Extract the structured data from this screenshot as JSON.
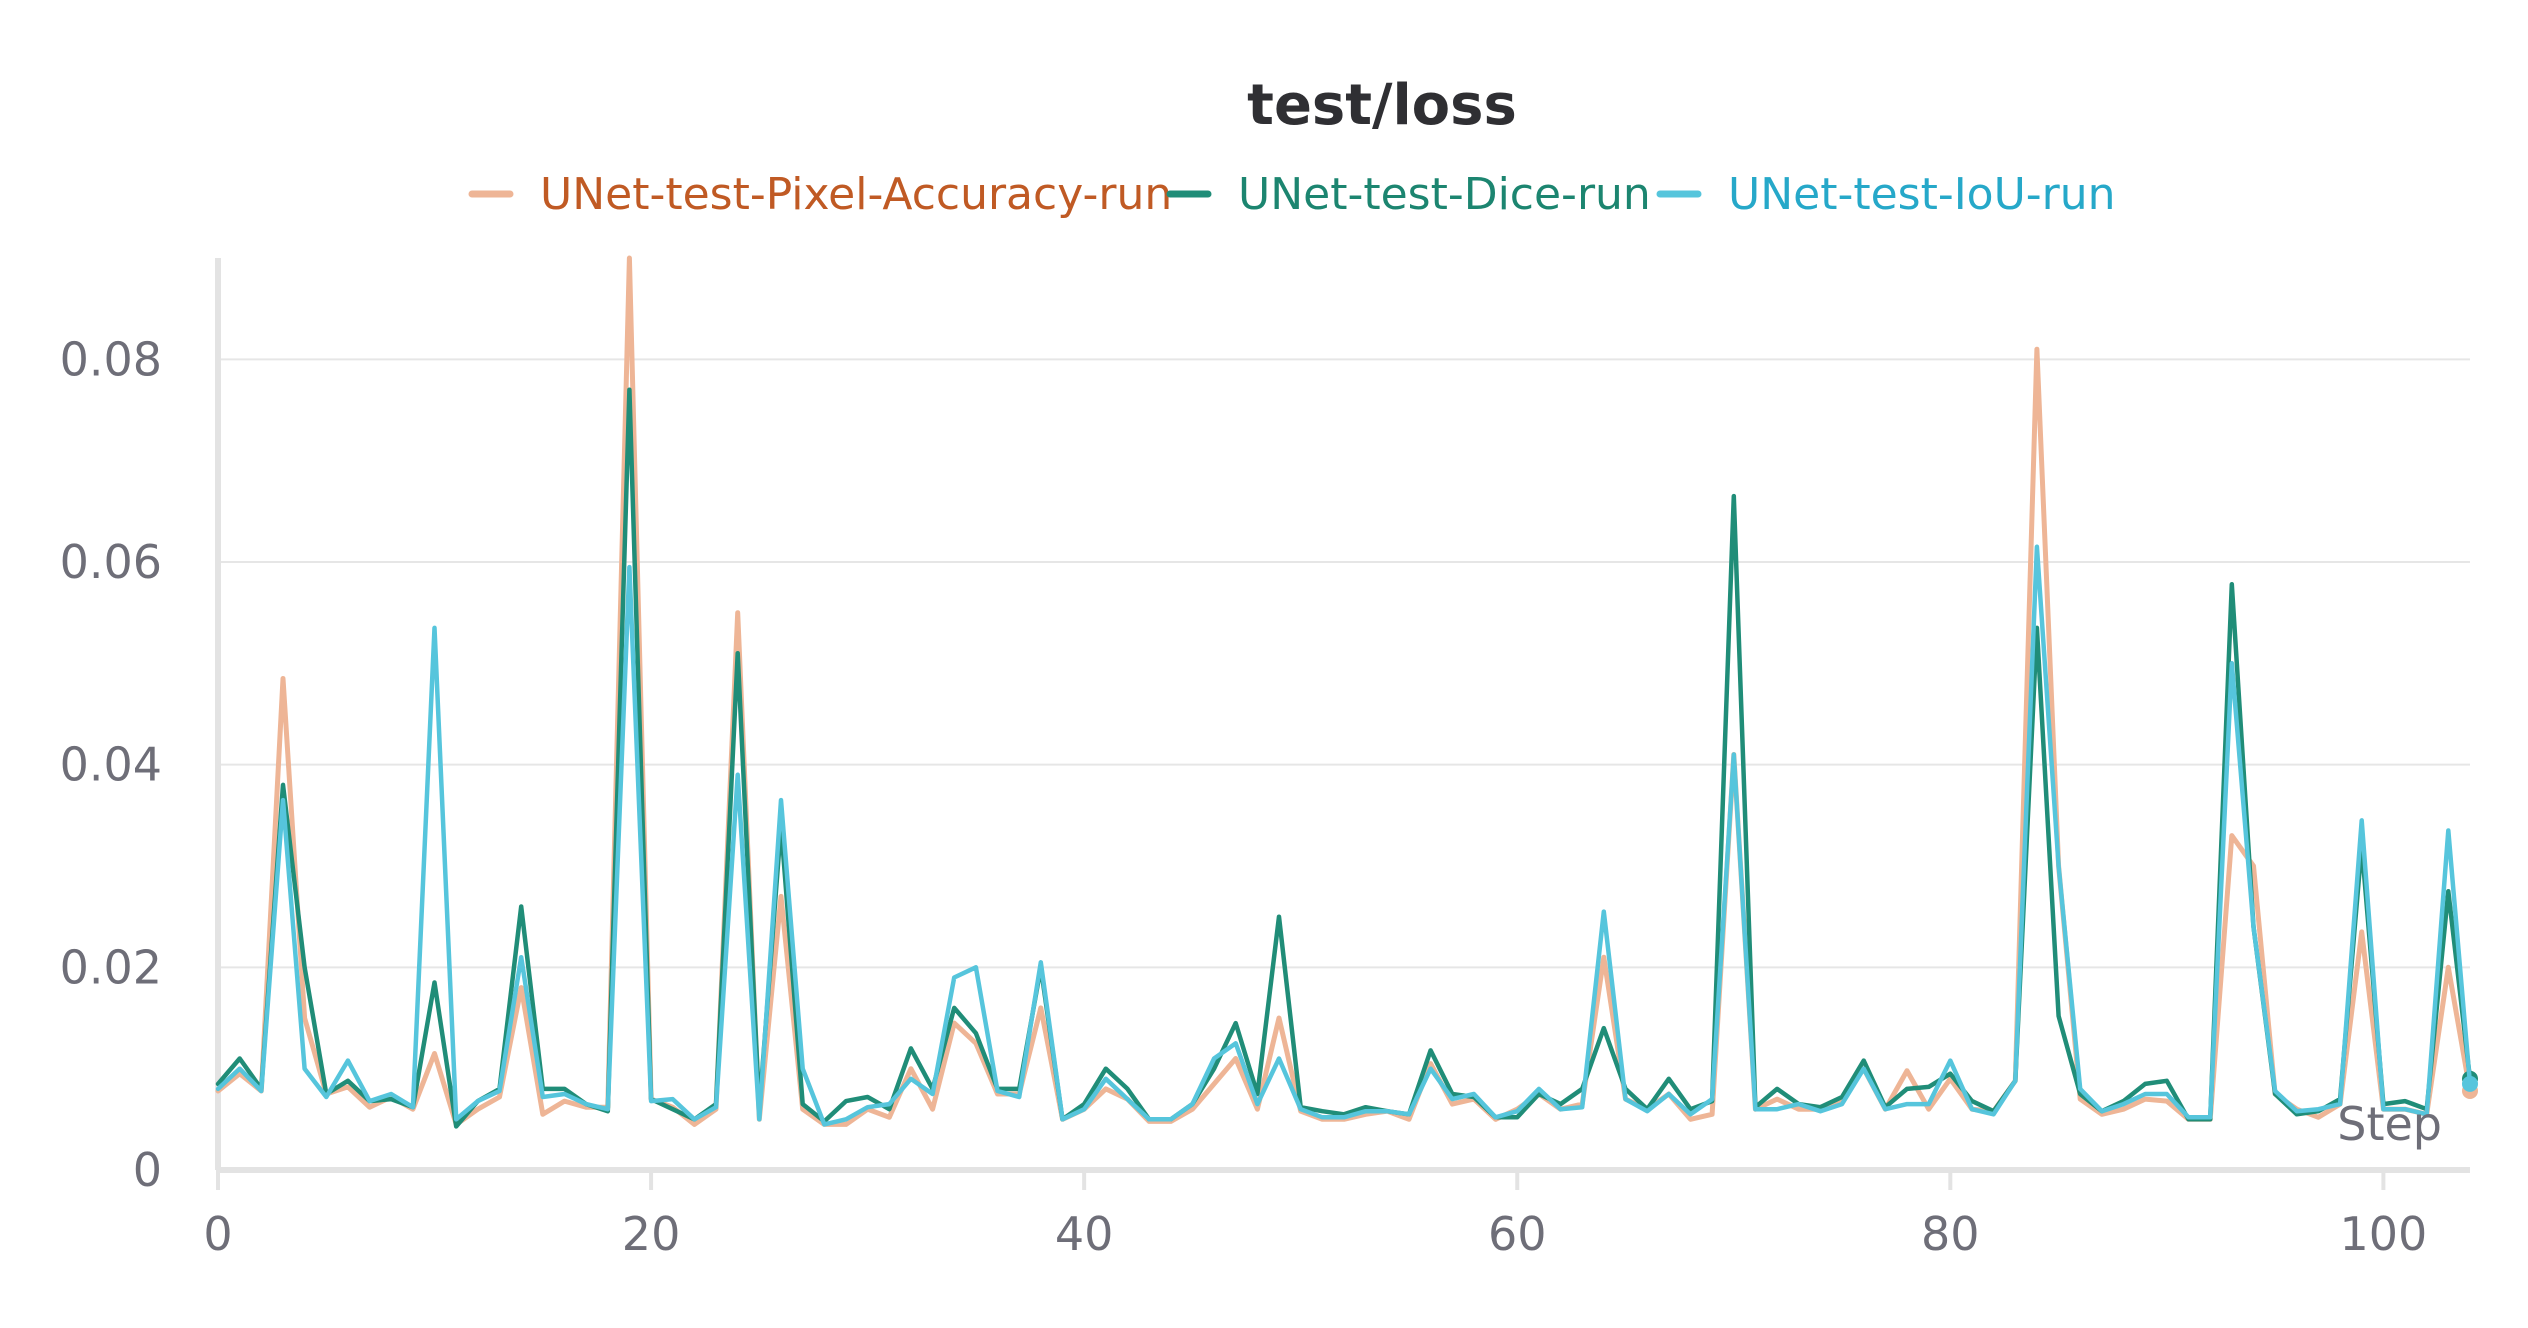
{
  "chart_data": {
    "type": "line",
    "title": "test/loss",
    "xlabel": "Step",
    "ylabel": "",
    "xlim": [
      0,
      104
    ],
    "ylim": [
      0,
      0.09
    ],
    "x_ticks": [
      0,
      20,
      40,
      60,
      80,
      100
    ],
    "y_ticks": [
      0,
      0.02,
      0.04,
      0.06,
      0.08
    ],
    "x_tick_labels": [
      "0",
      "20",
      "40",
      "60",
      "80",
      "100"
    ],
    "y_tick_labels": [
      "0",
      "0.02",
      "0.04",
      "0.06",
      "0.08"
    ],
    "grid": "horizontal",
    "legend_position": "top",
    "series": [
      {
        "name": "UNet-test-Pixel-Accuracy-run",
        "color": "#eeb596",
        "label_color": "#c05a24",
        "values": [
          0.0078,
          0.0095,
          0.0078,
          0.0485,
          0.015,
          0.0075,
          0.0082,
          0.0062,
          0.0072,
          0.006,
          0.0115,
          0.0045,
          0.006,
          0.0072,
          0.018,
          0.0055,
          0.0068,
          0.0062,
          0.0062,
          0.09,
          0.007,
          0.0062,
          0.0045,
          0.006,
          0.055,
          0.005,
          0.027,
          0.006,
          0.0045,
          0.0045,
          0.006,
          0.0052,
          0.01,
          0.006,
          0.0145,
          0.0125,
          0.0075,
          0.0075,
          0.016,
          0.005,
          0.006,
          0.008,
          0.007,
          0.0048,
          0.0048,
          0.006,
          0.0085,
          0.011,
          0.006,
          0.015,
          0.0058,
          0.005,
          0.005,
          0.0055,
          0.0058,
          0.005,
          0.0105,
          0.0065,
          0.007,
          0.005,
          0.006,
          0.0075,
          0.006,
          0.0065,
          0.021,
          0.007,
          0.006,
          0.0075,
          0.005,
          0.0055,
          0.041,
          0.006,
          0.007,
          0.006,
          0.006,
          0.007,
          0.01,
          0.006,
          0.0098,
          0.006,
          0.009,
          0.006,
          0.0058,
          0.0088,
          0.081,
          0.03,
          0.007,
          0.0055,
          0.006,
          0.007,
          0.0068,
          0.005,
          0.005,
          0.033,
          0.03,
          0.0075,
          0.006,
          0.0052,
          0.0065,
          0.0235,
          0.006,
          0.006,
          0.0055,
          0.02,
          0.0078
        ]
      },
      {
        "name": "UNet-test-Dice-run",
        "color": "#208d78",
        "label_color": "#1c8570",
        "values": [
          0.0085,
          0.011,
          0.008,
          0.038,
          0.02,
          0.0075,
          0.0088,
          0.0068,
          0.007,
          0.0062,
          0.0185,
          0.0043,
          0.0068,
          0.008,
          0.026,
          0.008,
          0.008,
          0.0065,
          0.0058,
          0.077,
          0.007,
          0.006,
          0.005,
          0.0065,
          0.051,
          0.006,
          0.034,
          0.0065,
          0.0048,
          0.0068,
          0.0072,
          0.006,
          0.012,
          0.008,
          0.016,
          0.0135,
          0.008,
          0.008,
          0.02,
          0.005,
          0.0065,
          0.01,
          0.008,
          0.005,
          0.005,
          0.0065,
          0.01,
          0.0145,
          0.0075,
          0.025,
          0.0062,
          0.0058,
          0.0055,
          0.0062,
          0.0058,
          0.0055,
          0.0118,
          0.0075,
          0.0072,
          0.0052,
          0.0052,
          0.0075,
          0.0065,
          0.008,
          0.014,
          0.008,
          0.006,
          0.009,
          0.006,
          0.0068,
          0.0665,
          0.0062,
          0.008,
          0.0065,
          0.0062,
          0.0072,
          0.0108,
          0.0062,
          0.008,
          0.0082,
          0.0095,
          0.0068,
          0.0058,
          0.0088,
          0.0535,
          0.0152,
          0.0075,
          0.0058,
          0.0068,
          0.0085,
          0.0088,
          0.005,
          0.005,
          0.0578,
          0.024,
          0.0075,
          0.0055,
          0.0058,
          0.007,
          0.032,
          0.0065,
          0.0068,
          0.006,
          0.0275,
          0.009
        ]
      },
      {
        "name": "UNet-test-IoU-run",
        "color": "#56c5dc",
        "label_color": "#26a8c9",
        "values": [
          0.008,
          0.01,
          0.0078,
          0.0365,
          0.01,
          0.0072,
          0.0108,
          0.0068,
          0.0075,
          0.0062,
          0.0535,
          0.005,
          0.0068,
          0.0078,
          0.021,
          0.0072,
          0.0075,
          0.0065,
          0.006,
          0.0595,
          0.0068,
          0.007,
          0.005,
          0.0062,
          0.039,
          0.005,
          0.0365,
          0.01,
          0.0045,
          0.005,
          0.0062,
          0.0065,
          0.009,
          0.0075,
          0.019,
          0.02,
          0.0078,
          0.0072,
          0.0205,
          0.005,
          0.006,
          0.009,
          0.007,
          0.005,
          0.005,
          0.0065,
          0.011,
          0.0125,
          0.0065,
          0.011,
          0.006,
          0.0052,
          0.0052,
          0.0058,
          0.0058,
          0.0055,
          0.01,
          0.007,
          0.0075,
          0.0052,
          0.0058,
          0.008,
          0.006,
          0.0062,
          0.0255,
          0.007,
          0.0058,
          0.0075,
          0.0055,
          0.007,
          0.041,
          0.006,
          0.006,
          0.0065,
          0.0058,
          0.0065,
          0.01,
          0.006,
          0.0065,
          0.0065,
          0.0108,
          0.006,
          0.0055,
          0.0088,
          0.0615,
          0.03,
          0.008,
          0.0058,
          0.0065,
          0.0075,
          0.0075,
          0.0052,
          0.0052,
          0.05,
          0.024,
          0.0078,
          0.0058,
          0.006,
          0.0065,
          0.0345,
          0.006,
          0.006,
          0.0055,
          0.0335,
          0.0085
        ]
      }
    ]
  }
}
